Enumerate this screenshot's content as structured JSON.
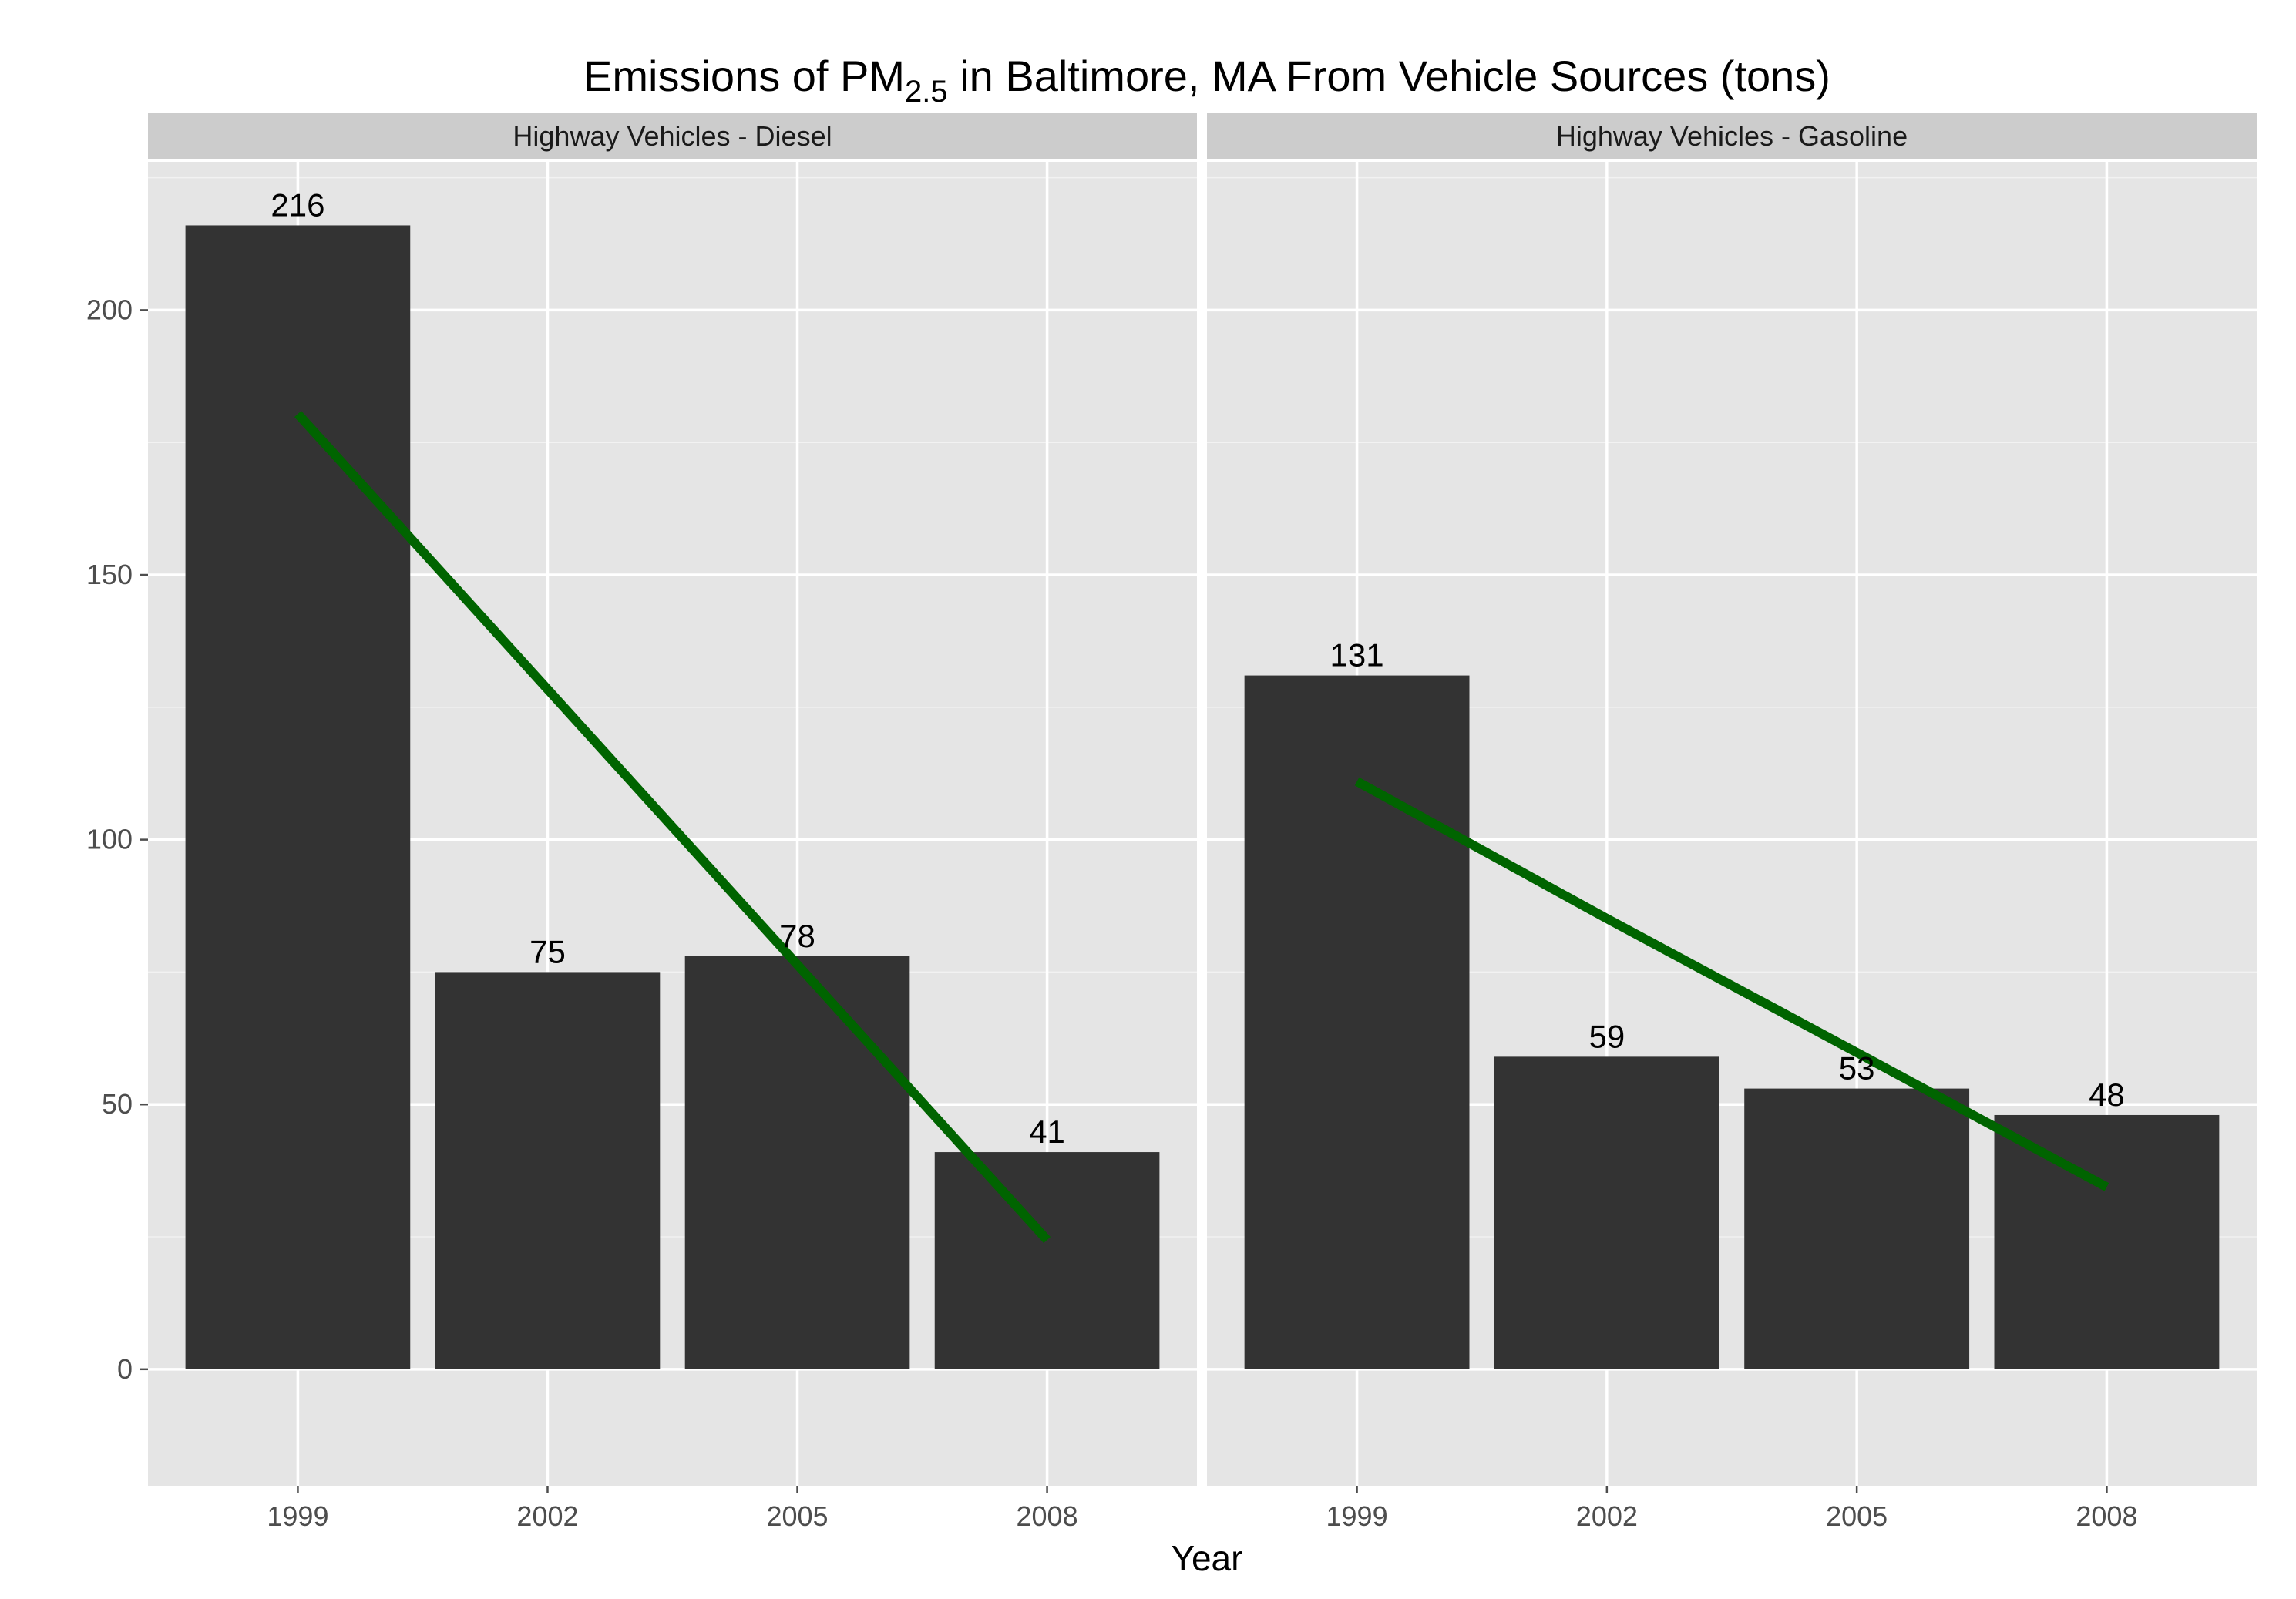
{
  "chart_data": {
    "type": "bar",
    "title": {
      "prefix": "Emissions of PM",
      "subscript": "2.5",
      "suffix": " in Baltimore, MA From Vehicle Sources (tons)"
    },
    "xlabel": "Year",
    "ylabel": "",
    "ylim": [
      -22,
      228
    ],
    "yticks": [
      0,
      50,
      100,
      150,
      200
    ],
    "grid": true,
    "categories": [
      "1999",
      "2002",
      "2005",
      "2008"
    ],
    "bar_color": "#333333",
    "trend_color": "#006400",
    "panel_bg": "#e5e5e5",
    "strip_bg": "#cccccc",
    "panels": [
      {
        "strip": "Highway Vehicles - Diesel",
        "values": [
          216,
          75,
          78,
          41
        ],
        "labels": [
          "216",
          "75",
          "78",
          "41"
        ],
        "trend": [
          180.4,
          128.4,
          76.4,
          24.4
        ]
      },
      {
        "strip": "Highway Vehicles - Gasoline",
        "values": [
          131,
          59,
          53,
          48
        ],
        "labels": [
          "131",
          "59",
          "53",
          "48"
        ],
        "trend": [
          111.0,
          85.1,
          59.8,
          34.4
        ]
      }
    ]
  }
}
